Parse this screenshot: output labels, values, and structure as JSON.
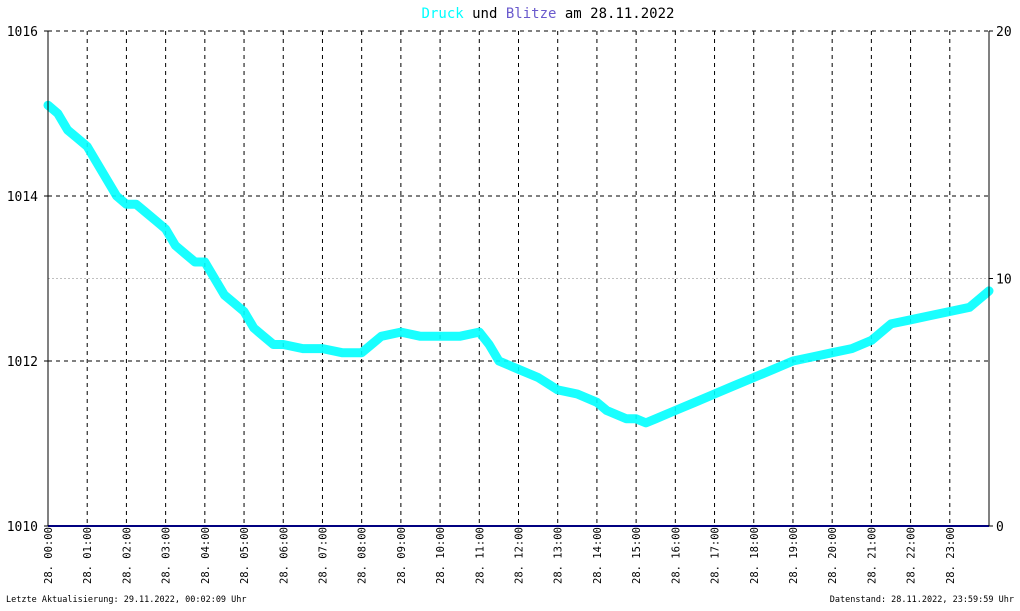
{
  "title": {
    "word1": "Druck",
    "word2": " und ",
    "word3": "Blitze",
    "word4": " am 28.11.2022"
  },
  "footer": {
    "left": "Letzte Aktualisierung: 29.11.2022, 00:02:09 Uhr",
    "right": "Datenstand: 28.11.2022, 23:59:59 Uhr"
  },
  "colors": {
    "druck": "#00ffff",
    "blitze": "#6a5acd",
    "title_other": "#000000",
    "zero_line": "#000080",
    "grid": "#000000",
    "mid_grid": "#c0c0c0",
    "axis": "#000000"
  },
  "chart_data": {
    "type": "line",
    "title": "Druck und Blitze am 28.11.2022",
    "x_ticks": [
      "28. 00:00",
      "28. 01:00",
      "28. 02:00",
      "28. 03:00",
      "28. 04:00",
      "28. 05:00",
      "28. 06:00",
      "28. 07:00",
      "28. 08:00",
      "28. 09:00",
      "28. 10:00",
      "28. 11:00",
      "28. 12:00",
      "28. 13:00",
      "28. 14:00",
      "28. 15:00",
      "28. 16:00",
      "28. 17:00",
      "28. 18:00",
      "28. 19:00",
      "28. 20:00",
      "28. 21:00",
      "28. 22:00",
      "28. 23:00"
    ],
    "xlim_hours": [
      0,
      24
    ],
    "y_left": {
      "ylim": [
        1010,
        1016
      ],
      "ticks": [
        "1010",
        "1012",
        "1014",
        "1016"
      ]
    },
    "y_right": {
      "ylim": [
        0,
        20
      ],
      "ticks": [
        "0",
        "10",
        "20"
      ]
    },
    "grid": true,
    "series": [
      {
        "name": "Druck",
        "axis": "left",
        "x_hours": [
          0,
          0.25,
          0.5,
          0.75,
          1,
          1.25,
          1.5,
          1.75,
          2,
          2.25,
          2.5,
          2.75,
          3,
          3.25,
          3.5,
          3.75,
          4,
          4.25,
          4.5,
          4.75,
          5,
          5.25,
          5.5,
          5.75,
          6,
          6.5,
          7,
          7.5,
          8,
          8.25,
          8.5,
          9,
          9.5,
          10,
          10.5,
          11,
          11.25,
          11.5,
          12,
          12.5,
          13,
          13.5,
          14,
          14.25,
          14.5,
          14.75,
          15,
          15.25,
          15.5,
          15.75,
          16,
          16.5,
          17,
          17.5,
          18,
          18.5,
          19,
          19.5,
          20,
          20.5,
          21,
          21.5,
          22,
          22.5,
          23,
          23.5,
          24
        ],
        "values": [
          1015.1,
          1015.0,
          1014.8,
          1014.7,
          1014.6,
          1014.4,
          1014.2,
          1014.0,
          1013.9,
          1013.9,
          1013.8,
          1013.7,
          1013.6,
          1013.4,
          1013.3,
          1013.2,
          1013.2,
          1013.0,
          1012.8,
          1012.7,
          1012.6,
          1012.4,
          1012.3,
          1012.2,
          1012.2,
          1012.15,
          1012.15,
          1012.1,
          1012.1,
          1012.2,
          1012.3,
          1012.35,
          1012.3,
          1012.3,
          1012.3,
          1012.35,
          1012.2,
          1012.0,
          1011.9,
          1011.8,
          1011.65,
          1011.6,
          1011.5,
          1011.4,
          1011.35,
          1011.3,
          1011.3,
          1011.25,
          1011.3,
          1011.35,
          1011.4,
          1011.5,
          1011.6,
          1011.7,
          1011.8,
          1011.9,
          1012.0,
          1012.05,
          1012.1,
          1012.15,
          1012.25,
          1012.45,
          1012.5,
          1012.55,
          1012.6,
          1012.65,
          1012.85
        ]
      },
      {
        "name": "Blitze",
        "axis": "right",
        "x_hours": [
          0,
          24
        ],
        "values": [
          0,
          0
        ]
      }
    ]
  }
}
